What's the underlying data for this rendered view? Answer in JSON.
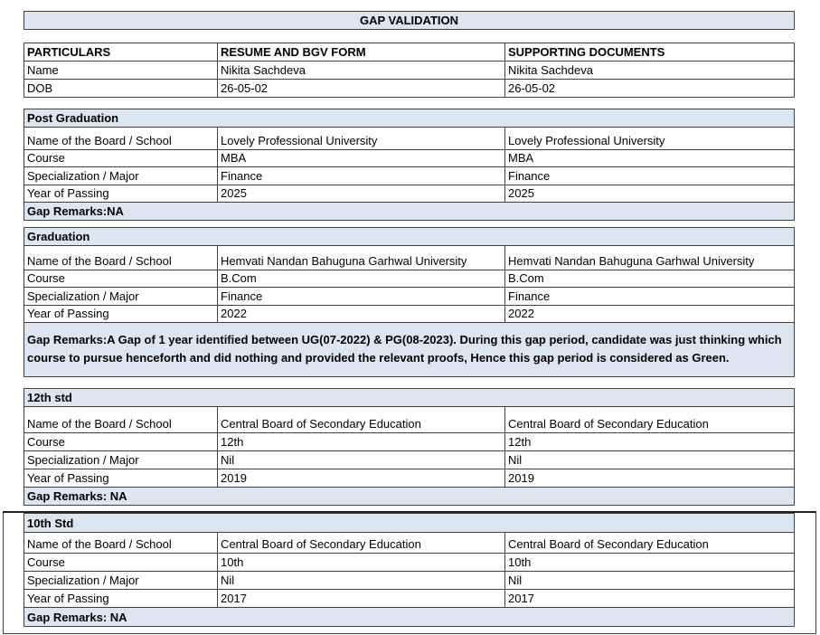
{
  "title": "GAP VALIDATION",
  "header": {
    "columns": [
      "PARTICULARS",
      "RESUME AND BGV FORM",
      "SUPPORTING DOCUMENTS"
    ],
    "rows": [
      [
        "Name",
        "Nikita Sachdeva",
        "Nikita Sachdeva"
      ],
      [
        "DOB",
        "26-05-02",
        "26-05-02"
      ]
    ]
  },
  "sections": [
    {
      "title": "Post Graduation",
      "rows": [
        [
          "Name of the Board / School",
          "Lovely Professional University",
          "Lovely Professional University"
        ],
        [
          "Course",
          "MBA",
          "MBA"
        ],
        [
          "Specialization / Major",
          "Finance",
          "Finance"
        ],
        [
          "Year of Passing",
          "2025",
          "2025"
        ]
      ],
      "remarks": "Gap Remarks:NA"
    },
    {
      "title": "Graduation",
      "rows": [
        [
          "Name of the Board / School",
          "Hemvati Nandan Bahuguna Garhwal University",
          "Hemvati Nandan Bahuguna Garhwal University"
        ],
        [
          "Course",
          "B.Com",
          "B.Com"
        ],
        [
          "Specialization / Major",
          "Finance",
          "Finance"
        ],
        [
          "Year of Passing",
          "2022",
          "2022"
        ]
      ],
      "remarks": "Gap Remarks:A Gap of 1 year identified between UG(07-2022) & PG(08-2023). During this gap period, candidate was just thinking which course to pursue henceforth and did nothing and provided the relevant proofs, Hence this gap period is considered as Green."
    },
    {
      "title": "12th std",
      "rows": [
        [
          "Name of the Board / School",
          "Central Board of Secondary Education",
          "Central Board of Secondary Education"
        ],
        [
          "Course",
          "12th",
          "12th"
        ],
        [
          "Specialization / Major",
          "Nil",
          "Nil"
        ],
        [
          "Year of Passing",
          "2019",
          "2019"
        ]
      ],
      "remarks": "Gap Remarks: NA"
    },
    {
      "title": "10th Std",
      "rows": [
        [
          "Name of the Board / School",
          "Central Board of Secondary Education",
          "Central Board of Secondary Education"
        ],
        [
          "Course",
          "10th",
          "10th"
        ],
        [
          "Specialization / Major",
          "Nil",
          "Nil"
        ],
        [
          "Year of Passing",
          "2017",
          "2017"
        ]
      ],
      "remarks": "Gap Remarks: NA"
    }
  ]
}
